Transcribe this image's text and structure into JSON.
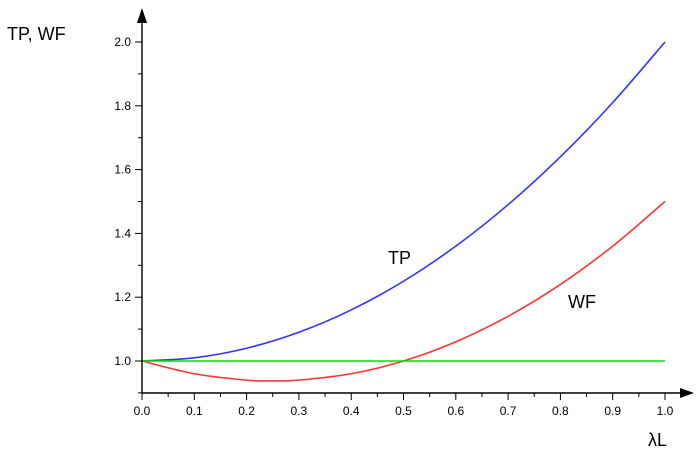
{
  "chart_data": {
    "type": "line",
    "title": "",
    "xlabel": "λL",
    "ylabel": "TP, WF",
    "xlim": [
      0.0,
      1.0
    ],
    "ylim": [
      0.9,
      2.0
    ],
    "x_ticks": [
      "0.0",
      "0.1",
      "0.2",
      "0.3",
      "0.4",
      "0.5",
      "0.6",
      "0.7",
      "0.8",
      "0.9",
      "1.0"
    ],
    "y_ticks": [
      "1.0",
      "1.2",
      "1.4",
      "1.6",
      "1.8",
      "2.0"
    ],
    "grid": false,
    "series": [
      {
        "name": "TP",
        "color": "#3333ff",
        "x": [
          0.0,
          0.1,
          0.2,
          0.3,
          0.4,
          0.5,
          0.6,
          0.7,
          0.8,
          0.9,
          1.0
        ],
        "y": [
          1.0,
          1.01,
          1.04,
          1.09,
          1.16,
          1.25,
          1.36,
          1.49,
          1.64,
          1.81,
          2.0
        ]
      },
      {
        "name": "WF",
        "color": "#ff3333",
        "x": [
          0.0,
          0.1,
          0.2,
          0.25,
          0.3,
          0.4,
          0.5,
          0.6,
          0.7,
          0.8,
          0.9,
          1.0
        ],
        "y": [
          1.0,
          0.96,
          0.94,
          0.9375,
          0.94,
          0.96,
          1.0,
          1.06,
          1.14,
          1.24,
          1.36,
          1.5
        ]
      },
      {
        "color": "#00e000",
        "x": [
          0.0,
          1.0
        ],
        "y": [
          1.0,
          1.0
        ]
      }
    ]
  }
}
